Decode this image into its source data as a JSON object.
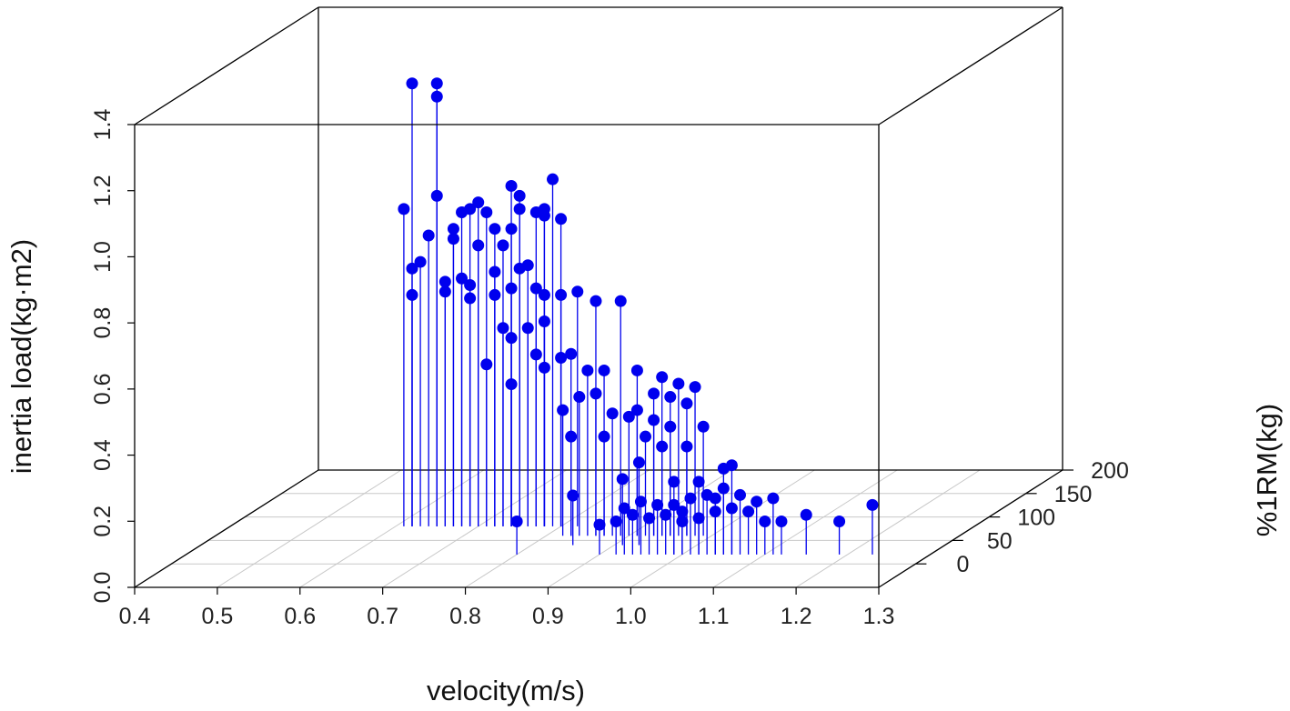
{
  "chart_data": {
    "type": "scatter",
    "subtype": "3d-scatter-with-drop-lines",
    "title": "",
    "xlabel": "velocity(m/s)",
    "ylabel": "inertia load(kg·m2)",
    "zlabel": "%1RM(kg)",
    "xlim": [
      0.4,
      1.3
    ],
    "ylim": [
      0.0,
      1.4
    ],
    "zlim": [
      -50,
      200
    ],
    "x_ticks": [
      "0.4",
      "0.5",
      "0.6",
      "0.7",
      "0.8",
      "0.9",
      "1.0",
      "1.1",
      "1.2",
      "1.3"
    ],
    "y_ticks": [
      "0.0",
      "0.2",
      "0.4",
      "0.6",
      "0.8",
      "1.0",
      "1.2",
      "1.4"
    ],
    "z_ticks": [
      "0",
      "50",
      "100",
      "150",
      "200"
    ],
    "grid": true,
    "point_color": "#0000ee",
    "box_color": "#000000",
    "grid_color": "#c8c8c8",
    "points": [
      {
        "x": 0.62,
        "y": 1.34,
        "z": 80
      },
      {
        "x": 0.65,
        "y": 1.34,
        "z": 80
      },
      {
        "x": 0.65,
        "y": 1.3,
        "z": 80
      },
      {
        "x": 0.65,
        "y": 1.0,
        "z": 80
      },
      {
        "x": 0.61,
        "y": 0.96,
        "z": 80
      },
      {
        "x": 0.79,
        "y": 1.05,
        "z": 80
      },
      {
        "x": 0.74,
        "y": 1.03,
        "z": 80
      },
      {
        "x": 0.75,
        "y": 1.0,
        "z": 80
      },
      {
        "x": 0.7,
        "y": 0.98,
        "z": 80
      },
      {
        "x": 0.69,
        "y": 0.96,
        "z": 80
      },
      {
        "x": 0.68,
        "y": 0.95,
        "z": 80
      },
      {
        "x": 0.71,
        "y": 0.95,
        "z": 80
      },
      {
        "x": 0.75,
        "y": 0.96,
        "z": 80
      },
      {
        "x": 0.78,
        "y": 0.96,
        "z": 80
      },
      {
        "x": 0.67,
        "y": 0.9,
        "z": 80
      },
      {
        "x": 0.72,
        "y": 0.9,
        "z": 80
      },
      {
        "x": 0.74,
        "y": 0.9,
        "z": 80
      },
      {
        "x": 0.64,
        "y": 0.88,
        "z": 80
      },
      {
        "x": 0.67,
        "y": 0.87,
        "z": 80
      },
      {
        "x": 0.7,
        "y": 0.85,
        "z": 80
      },
      {
        "x": 0.73,
        "y": 0.85,
        "z": 80
      },
      {
        "x": 0.77,
        "y": 0.95,
        "z": 80
      },
      {
        "x": 0.78,
        "y": 0.94,
        "z": 80
      },
      {
        "x": 0.8,
        "y": 0.93,
        "z": 80
      },
      {
        "x": 0.62,
        "y": 0.78,
        "z": 80
      },
      {
        "x": 0.63,
        "y": 0.8,
        "z": 80
      },
      {
        "x": 0.66,
        "y": 0.74,
        "z": 80
      },
      {
        "x": 0.68,
        "y": 0.75,
        "z": 80
      },
      {
        "x": 0.69,
        "y": 0.73,
        "z": 80
      },
      {
        "x": 0.72,
        "y": 0.77,
        "z": 80
      },
      {
        "x": 0.75,
        "y": 0.78,
        "z": 80
      },
      {
        "x": 0.76,
        "y": 0.79,
        "z": 80
      },
      {
        "x": 0.62,
        "y": 0.7,
        "z": 80
      },
      {
        "x": 0.66,
        "y": 0.71,
        "z": 80
      },
      {
        "x": 0.69,
        "y": 0.69,
        "z": 80
      },
      {
        "x": 0.72,
        "y": 0.7,
        "z": 80
      },
      {
        "x": 0.74,
        "y": 0.72,
        "z": 80
      },
      {
        "x": 0.77,
        "y": 0.72,
        "z": 80
      },
      {
        "x": 0.78,
        "y": 0.7,
        "z": 80
      },
      {
        "x": 0.8,
        "y": 0.7,
        "z": 80
      },
      {
        "x": 0.82,
        "y": 0.71,
        "z": 80
      },
      {
        "x": 0.73,
        "y": 0.6,
        "z": 80
      },
      {
        "x": 0.76,
        "y": 0.6,
        "z": 80
      },
      {
        "x": 0.78,
        "y": 0.62,
        "z": 80
      },
      {
        "x": 0.74,
        "y": 0.57,
        "z": 80
      },
      {
        "x": 0.77,
        "y": 0.52,
        "z": 80
      },
      {
        "x": 0.8,
        "y": 0.51,
        "z": 80
      },
      {
        "x": 0.71,
        "y": 0.49,
        "z": 80
      },
      {
        "x": 0.78,
        "y": 0.48,
        "z": 80
      },
      {
        "x": 0.74,
        "y": 0.43,
        "z": 80
      },
      {
        "x": 0.83,
        "y": 0.55,
        "z": 60
      },
      {
        "x": 0.85,
        "y": 0.5,
        "z": 60
      },
      {
        "x": 0.86,
        "y": 0.43,
        "z": 60
      },
      {
        "x": 0.84,
        "y": 0.42,
        "z": 60
      },
      {
        "x": 0.82,
        "y": 0.38,
        "z": 60
      },
      {
        "x": 0.88,
        "y": 0.37,
        "z": 60
      },
      {
        "x": 0.9,
        "y": 0.36,
        "z": 60
      },
      {
        "x": 0.93,
        "y": 0.35,
        "z": 60
      },
      {
        "x": 0.83,
        "y": 0.3,
        "z": 60
      },
      {
        "x": 0.87,
        "y": 0.3,
        "z": 60
      },
      {
        "x": 0.92,
        "y": 0.3,
        "z": 60
      },
      {
        "x": 0.95,
        "y": 0.33,
        "z": 60
      },
      {
        "x": 0.86,
        "y": 0.71,
        "z": 60
      },
      {
        "x": 0.89,
        "y": 0.71,
        "z": 60
      },
      {
        "x": 0.87,
        "y": 0.5,
        "z": 60
      },
      {
        "x": 0.91,
        "y": 0.5,
        "z": 60
      },
      {
        "x": 0.94,
        "y": 0.48,
        "z": 60
      },
      {
        "x": 0.96,
        "y": 0.46,
        "z": 60
      },
      {
        "x": 0.98,
        "y": 0.45,
        "z": 60
      },
      {
        "x": 0.93,
        "y": 0.43,
        "z": 60
      },
      {
        "x": 0.95,
        "y": 0.42,
        "z": 60
      },
      {
        "x": 0.97,
        "y": 0.4,
        "z": 60
      },
      {
        "x": 0.91,
        "y": 0.38,
        "z": 60
      },
      {
        "x": 0.99,
        "y": 0.33,
        "z": 60
      },
      {
        "x": 0.94,
        "y": 0.27,
        "z": 60
      },
      {
        "x": 0.97,
        "y": 0.27,
        "z": 60
      },
      {
        "x": 0.8,
        "y": 0.1,
        "z": 20
      },
      {
        "x": 0.85,
        "y": 0.15,
        "z": 40
      },
      {
        "x": 0.91,
        "y": 0.2,
        "z": 40
      },
      {
        "x": 0.93,
        "y": 0.25,
        "z": 40
      },
      {
        "x": 0.9,
        "y": 0.09,
        "z": 20
      },
      {
        "x": 0.92,
        "y": 0.1,
        "z": 20
      },
      {
        "x": 0.94,
        "y": 0.12,
        "z": 20
      },
      {
        "x": 0.96,
        "y": 0.11,
        "z": 20
      },
      {
        "x": 0.98,
        "y": 0.12,
        "z": 20
      },
      {
        "x": 1.0,
        "y": 0.1,
        "z": 20
      },
      {
        "x": 1.02,
        "y": 0.11,
        "z": 20
      },
      {
        "x": 1.04,
        "y": 0.13,
        "z": 20
      },
      {
        "x": 0.95,
        "y": 0.16,
        "z": 20
      },
      {
        "x": 0.97,
        "y": 0.15,
        "z": 20
      },
      {
        "x": 0.99,
        "y": 0.15,
        "z": 20
      },
      {
        "x": 1.01,
        "y": 0.17,
        "z": 20
      },
      {
        "x": 1.03,
        "y": 0.18,
        "z": 20
      },
      {
        "x": 1.06,
        "y": 0.14,
        "z": 20
      },
      {
        "x": 1.08,
        "y": 0.13,
        "z": 20
      },
      {
        "x": 1.1,
        "y": 0.1,
        "z": 20
      },
      {
        "x": 1.12,
        "y": 0.1,
        "z": 20
      },
      {
        "x": 1.15,
        "y": 0.12,
        "z": 20
      },
      {
        "x": 1.19,
        "y": 0.1,
        "z": 20
      },
      {
        "x": 1.23,
        "y": 0.15,
        "z": 20
      },
      {
        "x": 1.05,
        "y": 0.2,
        "z": 20
      },
      {
        "x": 1.07,
        "y": 0.18,
        "z": 20
      },
      {
        "x": 1.02,
        "y": 0.22,
        "z": 20
      },
      {
        "x": 0.99,
        "y": 0.22,
        "z": 20
      },
      {
        "x": 1.05,
        "y": 0.26,
        "z": 20
      },
      {
        "x": 1.06,
        "y": 0.27,
        "z": 20
      },
      {
        "x": 1.11,
        "y": 0.17,
        "z": 20
      },
      {
        "x": 0.93,
        "y": 0.14,
        "z": 20
      },
      {
        "x": 1.0,
        "y": 0.13,
        "z": 20
      },
      {
        "x": 1.04,
        "y": 0.17,
        "z": 20
      },
      {
        "x": 1.09,
        "y": 0.16,
        "z": 20
      }
    ]
  }
}
